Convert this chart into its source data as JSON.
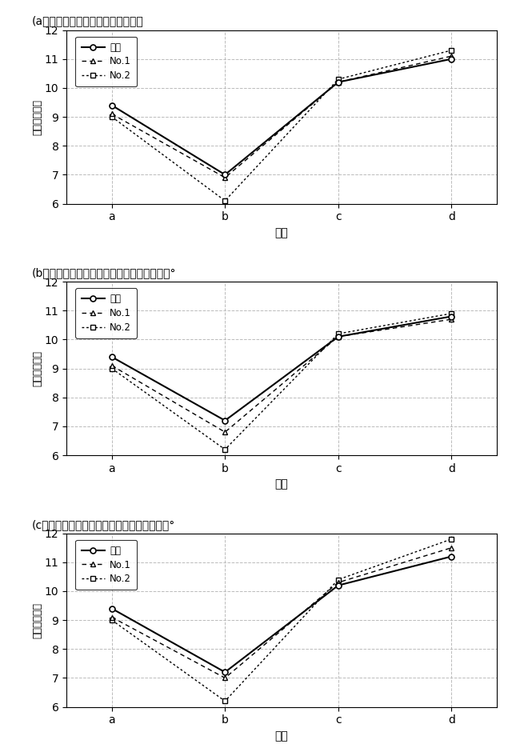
{
  "charts": [
    {
      "title": "(a）円周方向の測定位置が圧延方向",
      "series": {
        "実験": [
          9.4,
          7.0,
          10.2,
          11.0
        ],
        "No.1": [
          9.1,
          6.9,
          10.2,
          11.1
        ],
        "No.2": [
          9.0,
          6.1,
          10.3,
          11.3
        ]
      }
    },
    {
      "title": "(b）円周方向の測定位置が圧延方向から４５°",
      "series": {
        "実験": [
          9.4,
          7.2,
          10.1,
          10.8
        ],
        "No.1": [
          9.1,
          6.8,
          10.1,
          10.7
        ],
        "No.2": [
          9.0,
          6.2,
          10.2,
          10.9
        ]
      }
    },
    {
      "title": "(c）円周方向の測定位置が圧延方向から９０°",
      "series": {
        "実験": [
          9.4,
          7.2,
          10.2,
          11.2
        ],
        "No.1": [
          9.1,
          7.0,
          10.3,
          11.5
        ],
        "No.2": [
          9.0,
          6.2,
          10.4,
          11.8
        ]
      }
    }
  ],
  "x_labels": [
    "a",
    "b",
    "c",
    "d"
  ],
  "xlabel": "位置",
  "ylabel": "板厚（ｍｍ）",
  "ylim": [
    6,
    12
  ],
  "yticks": [
    6,
    7,
    8,
    9,
    10,
    11,
    12
  ],
  "legend_labels": [
    "実験",
    "No.1",
    "No.2"
  ],
  "bg_color": "#ffffff",
  "grid_color": "#bbbbbb"
}
